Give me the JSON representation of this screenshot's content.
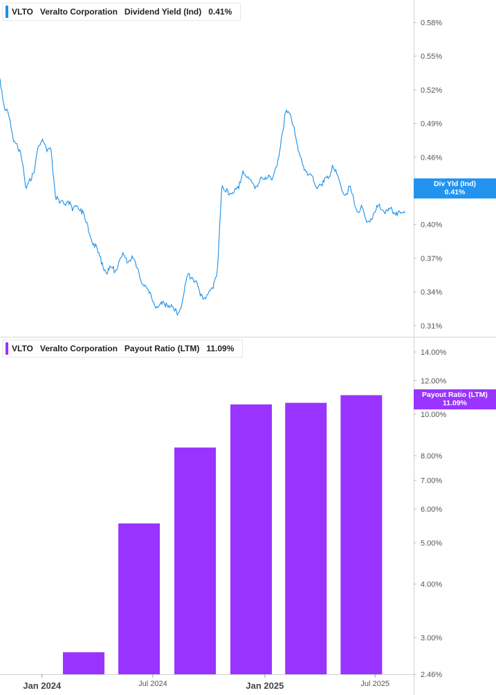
{
  "colors": {
    "yield_line": "#1a8fe8",
    "payout_bar": "#9933ff",
    "yield_tag": "#2294f0",
    "payout_tag": "#9a35ff"
  },
  "yield_panel": {
    "ticker": "VLTO",
    "company": "Veralto Corporation",
    "metric": "Dividend Yield (Ind)",
    "value": "0.41%",
    "tag_label": "Div Yld (Ind)",
    "tag_value": "0.41%"
  },
  "payout_panel": {
    "ticker": "VLTO",
    "company": "Veralto Corporation",
    "metric": "Payout Ratio (LTM)",
    "value": "11.09%",
    "tag_label": "Payout Ratio (LTM)",
    "tag_value": "11.09%"
  },
  "chart_data": [
    {
      "type": "line",
      "series": [
        {
          "name": "Dividend Yield (Ind)",
          "x": [
            "2023-10-24",
            "2023-10-31",
            "2023-11-07",
            "2023-11-14",
            "2023-11-21",
            "2023-11-28",
            "2023-12-05",
            "2023-12-12",
            "2023-12-19",
            "2023-12-26",
            "2024-01-02",
            "2024-01-09",
            "2024-01-16",
            "2024-01-23",
            "2024-01-30",
            "2024-02-06",
            "2024-02-13",
            "2024-02-20",
            "2024-02-27",
            "2024-03-05",
            "2024-03-12",
            "2024-03-19",
            "2024-03-26",
            "2024-04-02",
            "2024-04-09",
            "2024-04-16",
            "2024-04-23",
            "2024-04-30",
            "2024-05-07",
            "2024-05-14",
            "2024-05-21",
            "2024-05-28",
            "2024-06-04",
            "2024-06-11",
            "2024-06-18",
            "2024-06-25",
            "2024-07-02",
            "2024-07-09",
            "2024-07-16",
            "2024-07-23",
            "2024-07-30",
            "2024-08-06",
            "2024-08-13",
            "2024-08-20",
            "2024-08-27",
            "2024-09-03",
            "2024-09-10",
            "2024-09-17",
            "2024-09-24",
            "2024-10-01",
            "2024-10-08",
            "2024-10-15",
            "2024-10-22",
            "2024-10-29",
            "2024-11-05",
            "2024-11-12",
            "2024-11-19",
            "2024-11-26",
            "2024-12-03",
            "2024-12-10",
            "2024-12-17",
            "2024-12-24",
            "2024-12-31",
            "2025-01-07",
            "2025-01-14",
            "2025-01-21",
            "2025-01-28",
            "2025-02-04",
            "2025-02-11",
            "2025-02-18",
            "2025-02-25",
            "2025-03-04",
            "2025-03-11",
            "2025-03-18",
            "2025-03-25",
            "2025-04-01",
            "2025-04-08",
            "2025-04-15",
            "2025-04-22",
            "2025-04-29",
            "2025-05-06",
            "2025-05-13",
            "2025-05-20",
            "2025-05-27",
            "2025-06-03",
            "2025-06-10",
            "2025-06-17",
            "2025-06-24",
            "2025-07-01",
            "2025-07-08",
            "2025-07-15",
            "2025-07-22",
            "2025-07-29",
            "2025-08-05",
            "2025-08-12",
            "2025-08-19"
          ],
          "values": [
            0.53,
            0.505,
            0.498,
            0.478,
            0.472,
            0.46,
            0.433,
            0.441,
            0.446,
            0.47,
            0.476,
            0.465,
            0.466,
            0.425,
            0.419,
            0.418,
            0.421,
            0.412,
            0.417,
            0.414,
            0.404,
            0.392,
            0.383,
            0.375,
            0.366,
            0.356,
            0.362,
            0.358,
            0.368,
            0.373,
            0.366,
            0.372,
            0.362,
            0.351,
            0.346,
            0.339,
            0.331,
            0.326,
            0.329,
            0.33,
            0.327,
            0.323,
            0.322,
            0.336,
            0.355,
            0.353,
            0.35,
            0.336,
            0.335,
            0.34,
            0.343,
            0.36,
            0.432,
            0.429,
            0.428,
            0.43,
            0.432,
            0.448,
            0.442,
            0.438,
            0.434,
            0.44,
            0.44,
            0.444,
            0.442,
            0.452,
            0.477,
            0.5,
            0.499,
            0.487,
            0.465,
            0.453,
            0.447,
            0.444,
            0.434,
            0.436,
            0.438,
            0.441,
            0.453,
            0.445,
            0.434,
            0.426,
            0.434,
            0.422,
            0.411,
            0.415,
            0.402,
            0.405,
            0.411,
            0.418,
            0.412,
            0.412,
            0.413,
            0.411,
            0.41,
            0.41
          ]
        }
      ],
      "y_ticks": [
        "0.58%",
        "0.55%",
        "0.52%",
        "0.49%",
        "0.46%",
        "0.43%",
        "0.40%",
        "0.37%",
        "0.34%",
        "0.31%"
      ],
      "y_tick_values": [
        0.58,
        0.55,
        0.52,
        0.49,
        0.46,
        0.43,
        0.4,
        0.37,
        0.34,
        0.31
      ],
      "ylim": [
        0.3,
        0.6
      ],
      "last_value": 0.41
    },
    {
      "type": "bar",
      "y_scale": "log",
      "categories": [
        "2024-03-31",
        "2024-06-30",
        "2024-09-30",
        "2024-12-31",
        "2025-03-31",
        "2025-06-30"
      ],
      "values": [
        2.77,
        5.55,
        8.36,
        10.55,
        10.64,
        11.09
      ],
      "y_ticks": [
        "14.00%",
        "12.00%",
        "10.00%",
        "8.00%",
        "7.00%",
        "6.00%",
        "5.00%",
        "4.00%",
        "3.00%",
        "2.46%"
      ],
      "y_tick_values": [
        14,
        12,
        10,
        8,
        7,
        6,
        5,
        4,
        3,
        2.46
      ],
      "ylim": [
        2.46,
        15.14
      ],
      "x_ticks": [
        "Jan 2024",
        "Jul 2024",
        "Jan 2025",
        "Jul 2025"
      ],
      "x_tick_dates": [
        "2024-01-01",
        "2024-07-01",
        "2025-01-01",
        "2025-07-01"
      ],
      "last_value": 11.09
    }
  ]
}
